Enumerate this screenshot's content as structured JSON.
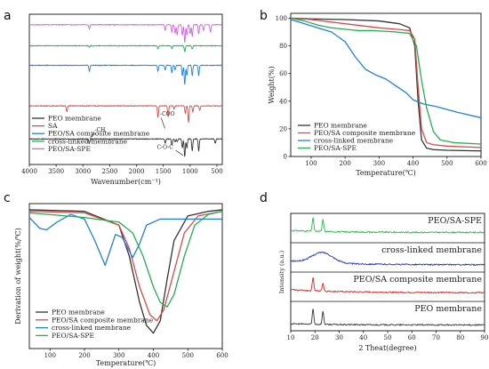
{
  "chart_data": [
    {
      "panel": "a",
      "type": "line",
      "xlabel": "Wavenumber(cm⁻¹)",
      "x_ticks": [
        4000,
        3500,
        3000,
        2500,
        2000,
        1500,
        1000,
        500
      ],
      "xlim": [
        4000,
        400
      ],
      "legend": [
        "PEO membrane",
        "SA",
        "PEO/SA composite membrane",
        "cross-linked membrane",
        "PEO/SA-SPE"
      ],
      "annotations": [
        "-CH",
        "-COO",
        "C-O-C"
      ],
      "series": [
        {
          "name": "PEO membrane",
          "color": "#333333",
          "baseline": 0.17,
          "peaks": [
            [
              2880,
              0.03
            ],
            [
              1465,
              0.03
            ],
            [
              1340,
              0.04
            ],
            [
              1280,
              0.02
            ],
            [
              1240,
              0.02
            ],
            [
              1145,
              0.06
            ],
            [
              1100,
              0.12
            ],
            [
              1060,
              0.06
            ],
            [
              960,
              0.08
            ],
            [
              840,
              0.08
            ],
            [
              530,
              0.03
            ]
          ]
        },
        {
          "name": "SA",
          "color": "#e04848",
          "baseline": 0.39,
          "peaks": [
            [
              3300,
              0.04
            ],
            [
              1600,
              0.08
            ],
            [
              1410,
              0.07
            ],
            [
              1300,
              0.02
            ],
            [
              1090,
              0.05
            ],
            [
              1030,
              0.11
            ],
            [
              950,
              0.04
            ],
            [
              820,
              0.03
            ]
          ]
        },
        {
          "name": "PEO/SA composite membrane",
          "color": "#2080e0",
          "baseline": 0.66,
          "peaks": [
            [
              2880,
              0.04
            ],
            [
              1600,
              0.04
            ],
            [
              1465,
              0.03
            ],
            [
              1340,
              0.05
            ],
            [
              1280,
              0.03
            ],
            [
              1145,
              0.07
            ],
            [
              1100,
              0.13
            ],
            [
              1060,
              0.07
            ],
            [
              960,
              0.07
            ],
            [
              840,
              0.07
            ]
          ]
        },
        {
          "name": "cross-linked membrane",
          "color": "#20b050",
          "baseline": 0.79,
          "peaks": [
            [
              2880,
              0.01
            ],
            [
              1600,
              0.02
            ],
            [
              1340,
              0.02
            ],
            [
              1100,
              0.04
            ],
            [
              960,
              0.02
            ]
          ]
        },
        {
          "name": "PEO/SA-SPE",
          "color": "#cc66dd",
          "baseline": 0.93,
          "peaks": [
            [
              2880,
              0.03
            ],
            [
              1465,
              0.04
            ],
            [
              1340,
              0.05
            ],
            [
              1280,
              0.06
            ],
            [
              1240,
              0.07
            ],
            [
              1145,
              0.07
            ],
            [
              1100,
              0.12
            ],
            [
              1060,
              0.07
            ],
            [
              1000,
              0.06
            ],
            [
              960,
              0.08
            ],
            [
              840,
              0.06
            ],
            [
              750,
              0.04
            ],
            [
              620,
              0.05
            ]
          ]
        }
      ]
    },
    {
      "panel": "b",
      "type": "line",
      "xlabel": "Temperature(℃)",
      "ylabel": "Weight(%)",
      "xlim": [
        40,
        600
      ],
      "ylim": [
        0,
        100
      ],
      "x_ticks": [
        100,
        200,
        300,
        400,
        500,
        600
      ],
      "y_ticks": [
        0,
        20,
        40,
        60,
        80,
        100
      ],
      "legend": [
        "PEO membrane",
        "PEO/SA composite membrane",
        "cross-linked membrane",
        "PEO/SA-SPE"
      ],
      "series": [
        {
          "name": "PEO membrane",
          "color": "#333333",
          "x": [
            40,
            100,
            200,
            300,
            360,
            390,
            405,
            415,
            425,
            440,
            460,
            500,
            600
          ],
          "y": [
            100,
            99.5,
            99,
            98,
            96,
            93,
            80,
            40,
            12,
            6,
            5,
            4.5,
            4
          ]
        },
        {
          "name": "PEO/SA composite membrane",
          "color": "#e04848",
          "x": [
            40,
            100,
            200,
            300,
            350,
            390,
            405,
            415,
            425,
            440,
            460,
            500,
            600
          ],
          "y": [
            100,
            99,
            96,
            93,
            92,
            91,
            85,
            50,
            20,
            10,
            8.5,
            7.5,
            6.5
          ]
        },
        {
          "name": "cross-linked membrane",
          "color": "#2080e0",
          "x": [
            40,
            80,
            120,
            160,
            200,
            230,
            260,
            290,
            320,
            350,
            380,
            400,
            430,
            470,
            530,
            600
          ],
          "y": [
            99,
            96,
            93,
            90,
            83,
            72,
            63,
            59,
            56,
            51,
            46,
            41,
            38,
            36,
            32,
            28
          ]
        },
        {
          "name": "PEO/SA-SPE",
          "color": "#20b050",
          "x": [
            40,
            80,
            120,
            160,
            200,
            240,
            280,
            320,
            350,
            390,
            410,
            425,
            440,
            460,
            480,
            520,
            600
          ],
          "y": [
            100,
            98,
            95,
            93,
            92,
            91,
            91,
            90.5,
            90,
            89,
            80,
            55,
            35,
            18,
            12,
            10,
            9
          ]
        }
      ]
    },
    {
      "panel": "c",
      "type": "line",
      "xlabel": "Temperature(℃)",
      "ylabel": "Derivation of weight(%/℃)",
      "xlim": [
        40,
        600
      ],
      "x_ticks": [
        100,
        200,
        300,
        400,
        500,
        600
      ],
      "legend": [
        "PEO membrane",
        "PEO/SA composite membrane",
        "cross-linked membrane",
        "PEO/SA-SPE"
      ],
      "series": [
        {
          "name": "PEO membrane",
          "color": "#333333",
          "x": [
            40,
            200,
            300,
            330,
            360,
            380,
            400,
            420,
            440,
            460,
            500,
            560,
            600
          ],
          "y": [
            0,
            -0.01,
            -0.1,
            -0.3,
            -0.6,
            -0.75,
            -0.8,
            -0.72,
            -0.45,
            -0.2,
            -0.04,
            -0.01,
            0
          ]
        },
        {
          "name": "PEO/SA composite membrane",
          "color": "#e04848",
          "x": [
            40,
            200,
            300,
            330,
            360,
            390,
            410,
            430,
            460,
            490,
            530,
            600
          ],
          "y": [
            -0.01,
            -0.02,
            -0.1,
            -0.25,
            -0.5,
            -0.68,
            -0.72,
            -0.65,
            -0.4,
            -0.15,
            -0.04,
            -0.01
          ]
        },
        {
          "name": "cross-linked membrane",
          "color": "#2080e0",
          "x": [
            40,
            70,
            90,
            120,
            160,
            200,
            230,
            260,
            290,
            310,
            340,
            360,
            380,
            420,
            480,
            600
          ],
          "y": [
            -0.05,
            -0.12,
            -0.13,
            -0.08,
            -0.03,
            -0.06,
            -0.2,
            -0.36,
            -0.16,
            -0.18,
            -0.31,
            -0.22,
            -0.1,
            -0.06,
            -0.06,
            -0.06
          ]
        },
        {
          "name": "PEO/SA-SPE",
          "color": "#20b050",
          "x": [
            40,
            200,
            300,
            340,
            370,
            400,
            420,
            440,
            460,
            490,
            520,
            560,
            600
          ],
          "y": [
            -0.02,
            -0.05,
            -0.08,
            -0.15,
            -0.3,
            -0.5,
            -0.6,
            -0.63,
            -0.55,
            -0.3,
            -0.1,
            -0.03,
            -0.01
          ]
        }
      ]
    },
    {
      "panel": "d",
      "type": "line",
      "xlabel": "2 Theat(degree)",
      "ylabel": "Intensity (a.u.)",
      "xlim": [
        10,
        90
      ],
      "x_ticks": [
        10,
        20,
        30,
        40,
        50,
        60,
        70,
        80,
        90
      ],
      "series": [
        {
          "name": "PEO/SA-SPE",
          "color": "#20c040"
        },
        {
          "name": "cross-linked membrane",
          "color": "#2030d0"
        },
        {
          "name": "PEO/SA composite membrane",
          "color": "#e02020"
        },
        {
          "name": "PEO membrane",
          "color": "#333333"
        }
      ]
    }
  ]
}
